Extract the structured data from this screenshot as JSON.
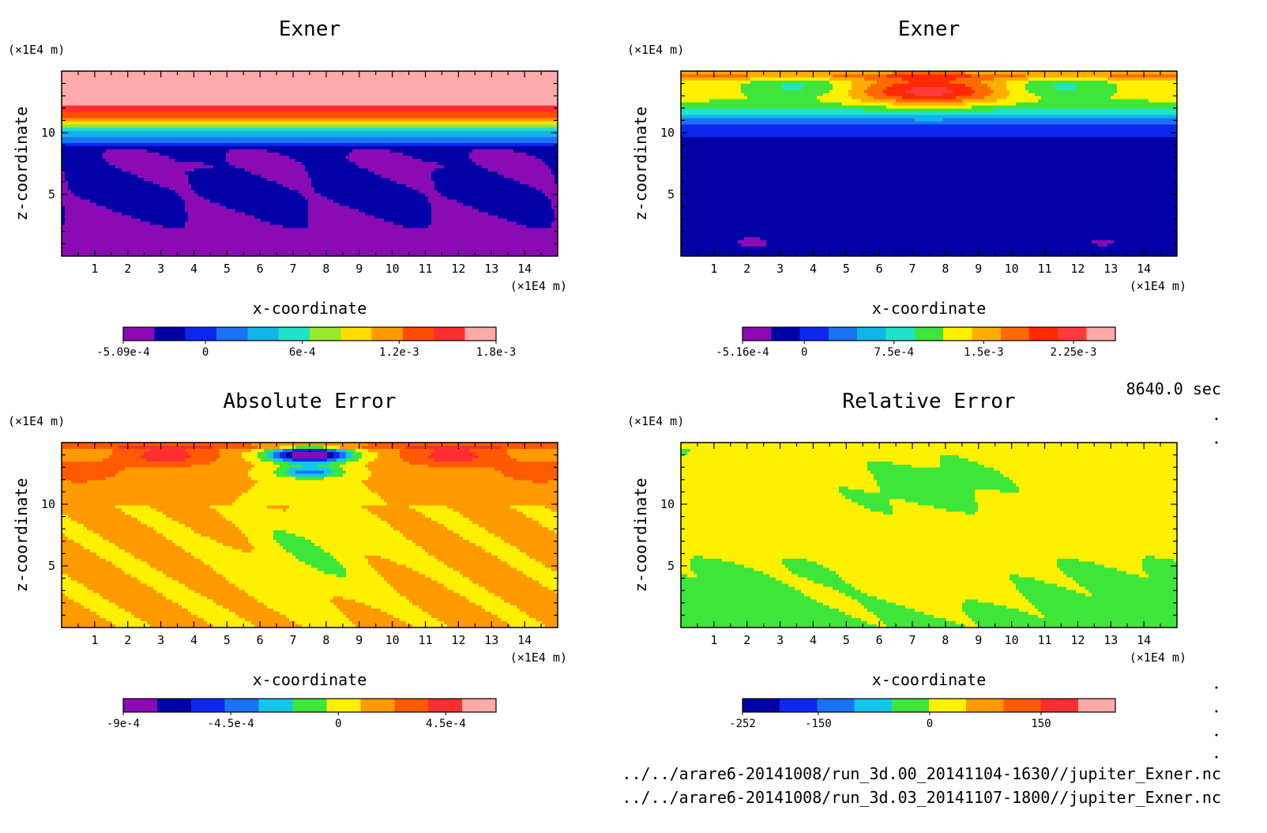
{
  "time_label": "8640.0 sec",
  "file_paths": [
    "../../arare6-20141008/run_3d.00_20141104-1630//jupiter_Exner.nc",
    "../../arare6-20141008/run_3d.03_20141107-1800//jupiter_Exner.nc"
  ],
  "chart_data": [
    {
      "type": "heatmap",
      "title": "Exner",
      "xlabel": "x-coordinate",
      "ylabel": "z-coordinate",
      "x_unit": "(×1E4 m)",
      "y_unit": "(×1E4 m)",
      "xlim": [
        0,
        15
      ],
      "ylim": [
        0,
        15
      ],
      "x_ticks": [
        1,
        2,
        3,
        4,
        5,
        6,
        7,
        8,
        9,
        10,
        11,
        12,
        13,
        14
      ],
      "y_ticks": [
        5,
        10
      ],
      "field": "exner1",
      "colorbar": {
        "colors": [
          "#8a0ab4",
          "#0000a6",
          "#0d28ee",
          "#1a73f5",
          "#12b4ea",
          "#1fe3cb",
          "#9ae82a",
          "#ffde00",
          "#ff9a00",
          "#ff4d00",
          "#ff2e2e",
          "#ffaaaa"
        ],
        "min": -0.000509,
        "max": 0.0018,
        "labels": [
          "-5.09e-4",
          "0",
          "6e-4",
          "1.2e-3",
          "1.8e-3"
        ],
        "label_values": [
          -0.000509,
          0,
          0.0006,
          0.0012,
          0.0018
        ]
      }
    },
    {
      "type": "heatmap",
      "title": "Exner",
      "xlabel": "x-coordinate",
      "ylabel": "z-coordinate",
      "x_unit": "(×1E4 m)",
      "y_unit": "(×1E4 m)",
      "xlim": [
        0,
        15
      ],
      "ylim": [
        0,
        15
      ],
      "x_ticks": [
        1,
        2,
        3,
        4,
        5,
        6,
        7,
        8,
        9,
        10,
        11,
        12,
        13,
        14
      ],
      "y_ticks": [
        5,
        10
      ],
      "field": "exner2",
      "colorbar": {
        "colors": [
          "#8a0ab4",
          "#0000a6",
          "#0d28ee",
          "#1a73f5",
          "#12b4ea",
          "#1fe3cb",
          "#3ee63a",
          "#fff000",
          "#ffae00",
          "#ff6a00",
          "#ff2a00",
          "#ff3c3c",
          "#ffaaaa"
        ],
        "min": -0.000516,
        "max": 0.0026,
        "labels": [
          "-5.16e-4",
          "0",
          "7.5e-4",
          "1.5e-3",
          "2.25e-3"
        ],
        "label_values": [
          -0.000516,
          0,
          0.00075,
          0.0015,
          0.00225
        ]
      }
    },
    {
      "type": "heatmap",
      "title": "Absolute Error",
      "xlabel": "x-coordinate",
      "ylabel": "z-coordinate",
      "x_unit": "(×1E4 m)",
      "y_unit": "(×1E4 m)",
      "xlim": [
        0,
        15
      ],
      "ylim": [
        0,
        15
      ],
      "x_ticks": [
        1,
        2,
        3,
        4,
        5,
        6,
        7,
        8,
        9,
        10,
        11,
        12,
        13,
        14
      ],
      "y_ticks": [
        5,
        10
      ],
      "field": "abserr",
      "colorbar": {
        "colors": [
          "#8a0ab4",
          "#0000a6",
          "#0d28ee",
          "#1a73f5",
          "#12c8ea",
          "#3ee63a",
          "#fff000",
          "#ff9a00",
          "#ff5a00",
          "#ff2e2e",
          "#ffaaaa"
        ],
        "min": -0.0009,
        "max": 0.00066,
        "labels": [
          "-9e-4",
          "-4.5e-4",
          "0",
          "4.5e-4"
        ],
        "label_values": [
          -0.0009,
          -0.00045,
          0,
          0.00045
        ]
      }
    },
    {
      "type": "heatmap",
      "title": "Relative Error",
      "xlabel": "x-coordinate",
      "ylabel": "z-coordinate",
      "x_unit": "(×1E4 m)",
      "y_unit": "(×1E4 m)",
      "xlim": [
        0,
        15
      ],
      "ylim": [
        0,
        15
      ],
      "x_ticks": [
        1,
        2,
        3,
        4,
        5,
        6,
        7,
        8,
        9,
        10,
        11,
        12,
        13,
        14
      ],
      "y_ticks": [
        5,
        10
      ],
      "field": "relerr",
      "colorbar": {
        "colors": [
          "#0000a6",
          "#0d28ee",
          "#1a73f5",
          "#12c8ea",
          "#3ee63a",
          "#fff000",
          "#ff9a00",
          "#ff5a00",
          "#ff2e2e",
          "#ffaaaa"
        ],
        "min": -252,
        "max": 250,
        "labels": [
          "-252",
          "-150",
          "0",
          "150"
        ],
        "label_values": [
          -252,
          -150,
          0,
          150
        ]
      }
    }
  ]
}
